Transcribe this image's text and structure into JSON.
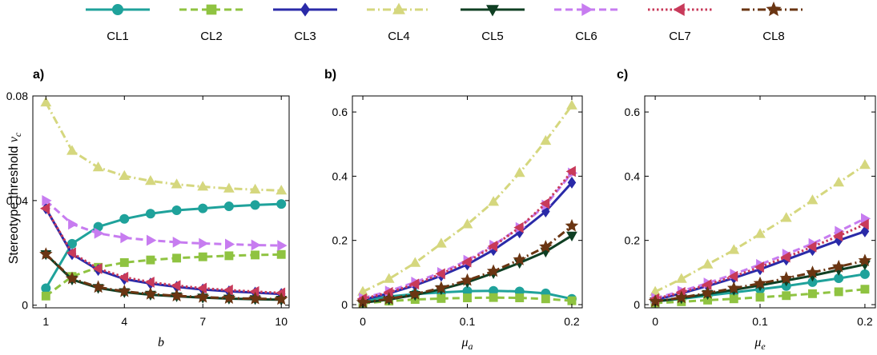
{
  "figure": {
    "ylabel_main": "Stereotype threshold ",
    "ylabel_symbol": "ν",
    "ylabel_sub": "c"
  },
  "colors": {
    "CL1": "#1fa29b",
    "CL2": "#8fc341",
    "CL3": "#2a2aa8",
    "CL4": "#d5d77e",
    "CL5": "#0f3f23",
    "CL6": "#c77cf0",
    "CL7": "#c83a5a",
    "CL8": "#6a3512"
  },
  "legend": [
    {
      "key": "CL1",
      "label": "CL1",
      "marker": "circle",
      "dash": "solid"
    },
    {
      "key": "CL2",
      "label": "CL2",
      "marker": "square",
      "dash": "dash"
    },
    {
      "key": "CL3",
      "label": "CL3",
      "marker": "diamond",
      "dash": "solid"
    },
    {
      "key": "CL4",
      "label": "CL4",
      "marker": "triangle-up",
      "dash": "dashdot"
    },
    {
      "key": "CL5",
      "label": "CL5",
      "marker": "triangle-down",
      "dash": "solid"
    },
    {
      "key": "CL6",
      "label": "CL6",
      "marker": "triangle-right",
      "dash": "dash"
    },
    {
      "key": "CL7",
      "label": "CL7",
      "marker": "triangle-left",
      "dash": "dot"
    },
    {
      "key": "CL8",
      "label": "CL8",
      "marker": "star",
      "dash": "dashdot"
    }
  ],
  "chart_data": [
    {
      "panel": "a)",
      "type": "line",
      "xlabel": "b",
      "xlim": [
        0.5,
        10.3
      ],
      "ylim": [
        -0.001,
        0.08
      ],
      "xticks": [
        1,
        4,
        7,
        10
      ],
      "xtick_labels": [
        "1",
        "4",
        "7",
        "10"
      ],
      "yticks": [
        0,
        0.04,
        0.08
      ],
      "ytick_labels": [
        "0",
        "0.04",
        "0.08"
      ],
      "grid": false,
      "x": [
        1,
        2,
        3,
        4,
        5,
        6,
        7,
        8,
        9,
        10
      ],
      "series": [
        {
          "name": "CL1",
          "values": [
            0.0065,
            0.0235,
            0.03,
            0.033,
            0.035,
            0.0363,
            0.037,
            0.0378,
            0.0383,
            0.0387
          ]
        },
        {
          "name": "CL2",
          "values": [
            0.0035,
            0.011,
            0.0145,
            0.0163,
            0.0173,
            0.018,
            0.0185,
            0.0189,
            0.0192,
            0.0194
          ]
        },
        {
          "name": "CL3",
          "values": [
            0.037,
            0.0195,
            0.0135,
            0.01,
            0.0083,
            0.007,
            0.006,
            0.0053,
            0.0048,
            0.0043
          ]
        },
        {
          "name": "CL4",
          "values": [
            0.0775,
            0.059,
            0.0527,
            0.0494,
            0.0475,
            0.0462,
            0.0453,
            0.0446,
            0.0442,
            0.0438
          ]
        },
        {
          "name": "CL5",
          "values": [
            0.0195,
            0.0098,
            0.0066,
            0.005,
            0.004,
            0.0034,
            0.0029,
            0.0025,
            0.0023,
            0.0021
          ]
        },
        {
          "name": "CL6",
          "values": [
            0.04,
            0.031,
            0.0275,
            0.0258,
            0.0248,
            0.0241,
            0.0236,
            0.0233,
            0.023,
            0.0228
          ]
        },
        {
          "name": "CL7",
          "values": [
            0.037,
            0.02,
            0.014,
            0.0107,
            0.0088,
            0.0075,
            0.0065,
            0.0058,
            0.0052,
            0.0047
          ]
        },
        {
          "name": "CL8",
          "values": [
            0.0195,
            0.0102,
            0.0069,
            0.0053,
            0.0043,
            0.0036,
            0.0031,
            0.0027,
            0.0025,
            0.0023
          ]
        }
      ]
    },
    {
      "panel": "b)",
      "type": "line",
      "xlabel": "μ",
      "xlabel_sub": "a",
      "xlim": [
        -0.01,
        0.21
      ],
      "ylim": [
        -0.01,
        0.65
      ],
      "xticks": [
        0,
        0.1,
        0.2
      ],
      "xtick_labels": [
        "0",
        "0.1",
        "0.2"
      ],
      "yticks": [
        0,
        0.2,
        0.4,
        0.6
      ],
      "ytick_labels": [
        "0",
        "0.2",
        "0.4",
        "0.6"
      ],
      "grid": false,
      "x": [
        0,
        0.025,
        0.05,
        0.075,
        0.1,
        0.125,
        0.15,
        0.175,
        0.2
      ],
      "series": [
        {
          "name": "CL1",
          "values": [
            0.012,
            0.025,
            0.033,
            0.038,
            0.042,
            0.043,
            0.041,
            0.035,
            0.018
          ]
        },
        {
          "name": "CL2",
          "values": [
            0.004,
            0.011,
            0.016,
            0.019,
            0.021,
            0.022,
            0.021,
            0.018,
            0.012
          ]
        },
        {
          "name": "CL3",
          "values": [
            0.015,
            0.035,
            0.06,
            0.09,
            0.125,
            0.17,
            0.225,
            0.29,
            0.38
          ]
        },
        {
          "name": "CL4",
          "values": [
            0.04,
            0.08,
            0.13,
            0.19,
            0.25,
            0.32,
            0.41,
            0.51,
            0.62
          ]
        },
        {
          "name": "CL5",
          "values": [
            0.006,
            0.016,
            0.03,
            0.048,
            0.07,
            0.098,
            0.13,
            0.165,
            0.215
          ]
        },
        {
          "name": "CL6",
          "values": [
            0.02,
            0.042,
            0.07,
            0.1,
            0.138,
            0.185,
            0.24,
            0.31,
            0.41
          ]
        },
        {
          "name": "CL7",
          "values": [
            0.018,
            0.038,
            0.064,
            0.096,
            0.133,
            0.182,
            0.24,
            0.315,
            0.415
          ]
        },
        {
          "name": "CL8",
          "values": [
            0.007,
            0.018,
            0.033,
            0.052,
            0.076,
            0.104,
            0.14,
            0.18,
            0.245
          ]
        }
      ]
    },
    {
      "panel": "c)",
      "type": "line",
      "xlabel": "μ",
      "xlabel_sub": "e",
      "xlim": [
        -0.01,
        0.21
      ],
      "ylim": [
        -0.01,
        0.65
      ],
      "xticks": [
        0,
        0.1,
        0.2
      ],
      "xtick_labels": [
        "0",
        "0.1",
        "0.2"
      ],
      "yticks": [
        0,
        0.2,
        0.4,
        0.6
      ],
      "ytick_labels": [
        "0",
        "0.2",
        "0.4",
        "0.6"
      ],
      "grid": false,
      "x": [
        0,
        0.025,
        0.05,
        0.075,
        0.1,
        0.125,
        0.15,
        0.175,
        0.2
      ],
      "series": [
        {
          "name": "CL1",
          "values": [
            0.01,
            0.018,
            0.028,
            0.038,
            0.048,
            0.058,
            0.07,
            0.082,
            0.095
          ]
        },
        {
          "name": "CL2",
          "values": [
            0.005,
            0.009,
            0.014,
            0.018,
            0.023,
            0.028,
            0.034,
            0.04,
            0.048
          ]
        },
        {
          "name": "CL3",
          "values": [
            0.015,
            0.035,
            0.058,
            0.083,
            0.11,
            0.14,
            0.17,
            0.2,
            0.228
          ]
        },
        {
          "name": "CL4",
          "values": [
            0.04,
            0.08,
            0.125,
            0.17,
            0.22,
            0.27,
            0.325,
            0.38,
            0.435
          ]
        },
        {
          "name": "CL5",
          "values": [
            0.01,
            0.02,
            0.033,
            0.046,
            0.06,
            0.075,
            0.09,
            0.108,
            0.125
          ]
        },
        {
          "name": "CL6",
          "values": [
            0.02,
            0.042,
            0.067,
            0.095,
            0.125,
            0.157,
            0.19,
            0.228,
            0.268
          ]
        },
        {
          "name": "CL7",
          "values": [
            0.018,
            0.038,
            0.062,
            0.088,
            0.117,
            0.148,
            0.18,
            0.214,
            0.25
          ]
        },
        {
          "name": "CL8",
          "values": [
            0.01,
            0.022,
            0.036,
            0.051,
            0.066,
            0.082,
            0.1,
            0.118,
            0.137
          ]
        }
      ]
    }
  ]
}
